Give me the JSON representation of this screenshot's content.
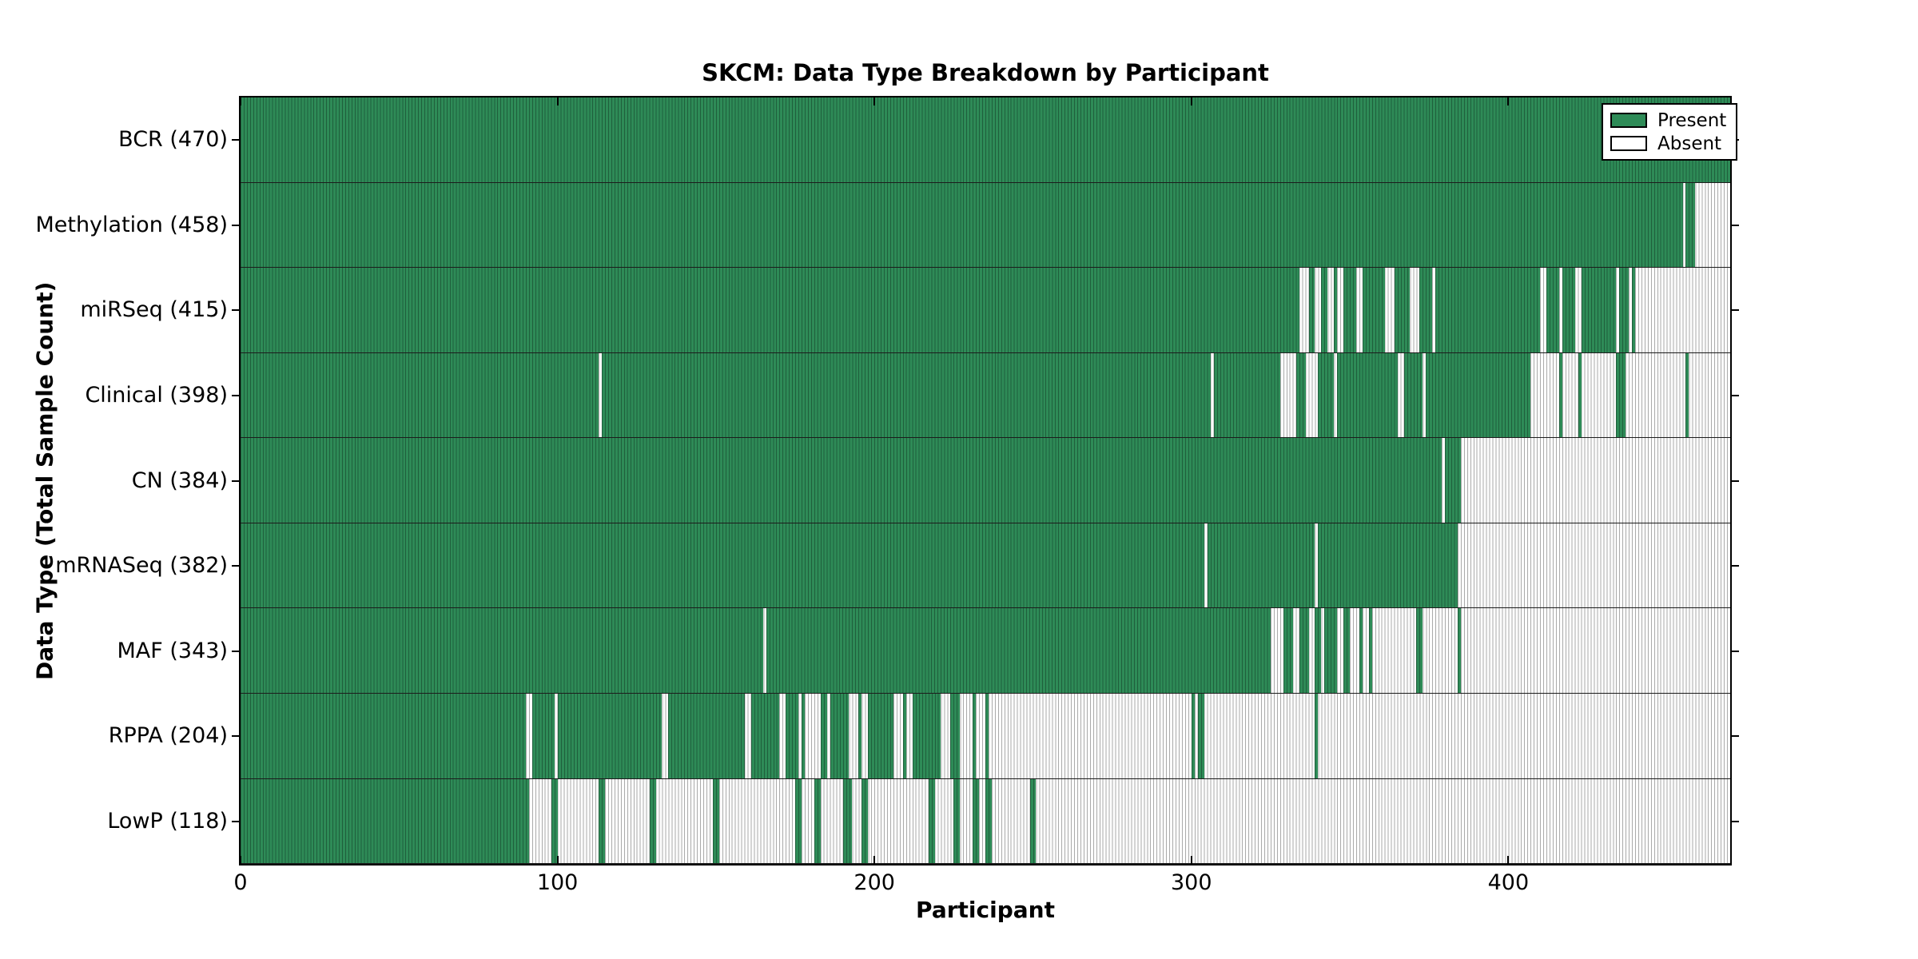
{
  "chart_data": {
    "type": "heatmap",
    "subtype": "presence-absence-matrix",
    "title": "SKCM: Data Type Breakdown by Participant",
    "xlabel": "Participant",
    "ylabel": "Data Type (Total Sample Count)",
    "n_participants": 470,
    "xlim": [
      0,
      470
    ],
    "xticks": [
      0,
      100,
      200,
      300,
      400
    ],
    "grid": false,
    "legend": {
      "position": "upper right",
      "entries": [
        {
          "label": "Present",
          "color": "#2e8b57"
        },
        {
          "label": "Absent",
          "color": "#ffffff"
        }
      ]
    },
    "colors": {
      "present": "#2e8b57",
      "present_edge": "#1f5f3c",
      "absent": "#fdfdfd",
      "absent_edge": "#ababab",
      "frame": "#000000"
    },
    "rows": [
      {
        "label": "BCR",
        "count": 470,
        "display": "BCR (470)",
        "present_segments": [
          [
            0,
            470
          ]
        ]
      },
      {
        "label": "Methylation",
        "count": 458,
        "display": "Methylation (458)",
        "present_segments": [
          [
            0,
            455
          ],
          [
            456,
            459
          ]
        ]
      },
      {
        "label": "miRSeq",
        "count": 415,
        "display": "miRSeq (415)",
        "present_segments": [
          [
            0,
            334
          ],
          [
            337,
            339
          ],
          [
            341,
            343
          ],
          [
            345,
            346
          ],
          [
            348,
            352
          ],
          [
            354,
            361
          ],
          [
            364,
            369
          ],
          [
            372,
            376
          ],
          [
            377,
            410
          ],
          [
            412,
            416
          ],
          [
            417,
            421
          ],
          [
            423,
            434
          ],
          [
            435,
            438
          ],
          [
            439,
            440
          ]
        ]
      },
      {
        "label": "Clinical",
        "count": 398,
        "display": "Clinical (398)",
        "present_segments": [
          [
            0,
            113
          ],
          [
            114,
            306
          ],
          [
            307,
            328
          ],
          [
            333,
            336
          ],
          [
            340,
            345
          ],
          [
            346,
            365
          ],
          [
            367,
            373
          ],
          [
            374,
            407
          ],
          [
            416,
            417
          ],
          [
            422,
            423
          ],
          [
            434,
            437
          ],
          [
            456,
            457
          ]
        ]
      },
      {
        "label": "CN",
        "count": 384,
        "display": "CN (384)",
        "present_segments": [
          [
            0,
            379
          ],
          [
            380,
            385
          ]
        ]
      },
      {
        "label": "mRNASeq",
        "count": 382,
        "display": "mRNASeq (382)",
        "present_segments": [
          [
            0,
            304
          ],
          [
            305,
            339
          ],
          [
            340,
            384
          ]
        ]
      },
      {
        "label": "MAF",
        "count": 343,
        "display": "MAF (343)",
        "present_segments": [
          [
            0,
            165
          ],
          [
            166,
            325
          ],
          [
            329,
            332
          ],
          [
            334,
            337
          ],
          [
            339,
            341
          ],
          [
            342,
            346
          ],
          [
            348,
            350
          ],
          [
            353,
            354
          ],
          [
            356,
            357
          ],
          [
            371,
            373
          ],
          [
            384,
            385
          ]
        ]
      },
      {
        "label": "RPPA",
        "count": 204,
        "display": "RPPA (204)",
        "present_segments": [
          [
            0,
            90
          ],
          [
            92,
            99
          ],
          [
            100,
            133
          ],
          [
            135,
            159
          ],
          [
            161,
            170
          ],
          [
            172,
            176
          ],
          [
            177,
            178
          ],
          [
            183,
            185
          ],
          [
            186,
            192
          ],
          [
            195,
            196
          ],
          [
            198,
            206
          ],
          [
            209,
            210
          ],
          [
            212,
            221
          ],
          [
            224,
            227
          ],
          [
            231,
            232
          ],
          [
            235,
            236
          ],
          [
            300,
            301
          ],
          [
            302,
            304
          ],
          [
            339,
            340
          ]
        ]
      },
      {
        "label": "LowP",
        "count": 118,
        "display": "LowP (118)",
        "present_segments": [
          [
            0,
            91
          ],
          [
            98,
            100
          ],
          [
            113,
            115
          ],
          [
            129,
            131
          ],
          [
            149,
            151
          ],
          [
            175,
            177
          ],
          [
            181,
            183
          ],
          [
            190,
            193
          ],
          [
            196,
            198
          ],
          [
            217,
            219
          ],
          [
            225,
            227
          ],
          [
            231,
            233
          ],
          [
            235,
            237
          ],
          [
            249,
            251
          ]
        ]
      }
    ]
  }
}
